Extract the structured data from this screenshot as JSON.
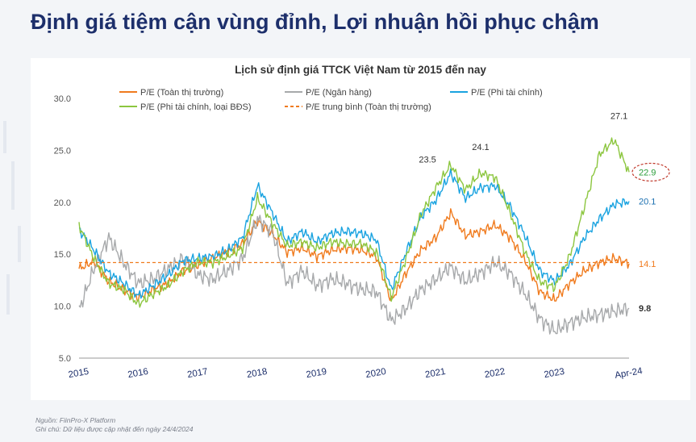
{
  "page": {
    "title": "Định giá tiệm cận vùng đỉnh, Lợi nhuận hồi phục chậm",
    "source": "Nguồn: FiinPro-X Platform",
    "note": "Ghi chú: Dữ liệu được cập nhật đến ngày 24/4/2024"
  },
  "chart_data": {
    "type": "line",
    "title": "Lịch sử định giá TTCK Việt Nam từ 2015 đến nay",
    "xlabel": "",
    "ylabel": "",
    "ylim": [
      5,
      30
    ],
    "y_ticks": [
      "5.0",
      "10.0",
      "15.0",
      "20.0",
      "25.0",
      "30.0"
    ],
    "x_ticks": [
      "2015",
      "2016",
      "2017",
      "2018",
      "2019",
      "2020",
      "2021",
      "2022",
      "2023",
      "Apr-24"
    ],
    "legend_position": "top",
    "grid": false,
    "x": [
      "2015-01",
      "2015-04",
      "2015-07",
      "2015-10",
      "2016-01",
      "2016-04",
      "2016-07",
      "2016-10",
      "2017-01",
      "2017-04",
      "2017-07",
      "2017-10",
      "2018-01",
      "2018-04",
      "2018-07",
      "2018-10",
      "2019-01",
      "2019-04",
      "2019-07",
      "2019-10",
      "2020-01",
      "2020-04",
      "2020-07",
      "2020-10",
      "2021-01",
      "2021-04",
      "2021-07",
      "2021-10",
      "2022-01",
      "2022-04",
      "2022-07",
      "2022-10",
      "2023-01",
      "2023-04",
      "2023-07",
      "2023-10",
      "2024-01",
      "2024-04"
    ],
    "series": [
      {
        "name": "P/E (Toàn thị trường)",
        "color": "#f07b1e",
        "dash": false,
        "values": [
          13.6,
          14.3,
          12.4,
          11.6,
          10.8,
          11.6,
          12.2,
          13.4,
          14.0,
          14.6,
          15.2,
          16.0,
          18.2,
          17.0,
          15.2,
          15.6,
          14.8,
          15.4,
          15.6,
          15.4,
          14.8,
          10.5,
          13.2,
          15.4,
          16.6,
          19.0,
          16.8,
          17.2,
          17.8,
          16.6,
          14.4,
          11.4,
          10.6,
          12.2,
          13.4,
          14.2,
          14.6,
          14.1
        ]
      },
      {
        "name": "P/E (Ngân hàng)",
        "color": "#a7a9ab",
        "dash": false,
        "values": [
          9.6,
          13.6,
          16.6,
          14.2,
          12.2,
          12.6,
          13.6,
          14.6,
          13.0,
          12.6,
          13.4,
          14.6,
          18.4,
          17.2,
          12.2,
          13.4,
          12.0,
          12.6,
          12.2,
          11.6,
          11.4,
          8.6,
          9.8,
          11.6,
          12.6,
          13.8,
          12.4,
          13.2,
          14.2,
          13.2,
          11.2,
          8.8,
          7.6,
          8.4,
          8.9,
          9.2,
          9.5,
          9.8
        ]
      },
      {
        "name": "P/E (Phi tài chính)",
        "color": "#1aa3e0",
        "dash": false,
        "values": [
          17.4,
          15.4,
          13.2,
          12.2,
          11.0,
          12.0,
          13.0,
          14.4,
          14.6,
          14.8,
          15.4,
          16.6,
          21.6,
          19.0,
          16.2,
          17.2,
          16.2,
          17.0,
          17.2,
          17.0,
          16.4,
          11.6,
          15.2,
          18.6,
          20.2,
          22.8,
          20.4,
          21.4,
          21.6,
          19.6,
          16.8,
          13.4,
          12.4,
          14.0,
          16.6,
          18.4,
          19.8,
          20.1
        ]
      },
      {
        "name": "P/E (Phi tài chính, loại BĐS)",
        "color": "#8cc63f",
        "dash": false,
        "values": [
          17.8,
          14.6,
          12.2,
          11.6,
          10.2,
          11.2,
          12.0,
          13.4,
          14.2,
          14.2,
          14.8,
          15.6,
          20.4,
          18.0,
          15.8,
          16.2,
          15.6,
          16.2,
          16.0,
          16.0,
          15.2,
          10.8,
          14.6,
          18.8,
          21.4,
          23.6,
          21.2,
          22.8,
          22.4,
          19.0,
          15.2,
          12.4,
          11.8,
          14.8,
          19.6,
          24.6,
          26.0,
          22.9
        ]
      },
      {
        "name": "P/E trung bình (Toàn thị trường)",
        "color": "#f07b1e",
        "dash": true,
        "values": [
          14.2,
          14.2,
          14.2,
          14.2,
          14.2,
          14.2,
          14.2,
          14.2,
          14.2,
          14.2,
          14.2,
          14.2,
          14.2,
          14.2,
          14.2,
          14.2,
          14.2,
          14.2,
          14.2,
          14.2,
          14.2,
          14.2,
          14.2,
          14.2,
          14.2,
          14.2,
          14.2,
          14.2,
          14.2,
          14.2,
          14.2,
          14.2,
          14.2,
          14.2,
          14.2,
          14.2,
          14.2,
          14.2
        ]
      }
    ],
    "annotations": [
      {
        "text": "23.5",
        "x": "2021-04",
        "y": 23.5,
        "color": "#333333"
      },
      {
        "text": "24.1",
        "x": "2021-07",
        "y": 24.1,
        "color": "#333333"
      },
      {
        "text": "27.1",
        "x": "2024-01",
        "y": 27.1,
        "color": "#333333"
      },
      {
        "text": "22.9",
        "x": "2024-04",
        "y": 22.9,
        "color": "#2a9d3a"
      },
      {
        "text": "20.1",
        "x": "2024-04",
        "y": 20.1,
        "color": "#1a6fb0"
      },
      {
        "text": "14.1",
        "x": "2024-04",
        "y": 14.1,
        "color": "#f07b1e"
      },
      {
        "text": "9.8",
        "x": "2024-04",
        "y": 9.8,
        "color": "#333333"
      }
    ]
  }
}
